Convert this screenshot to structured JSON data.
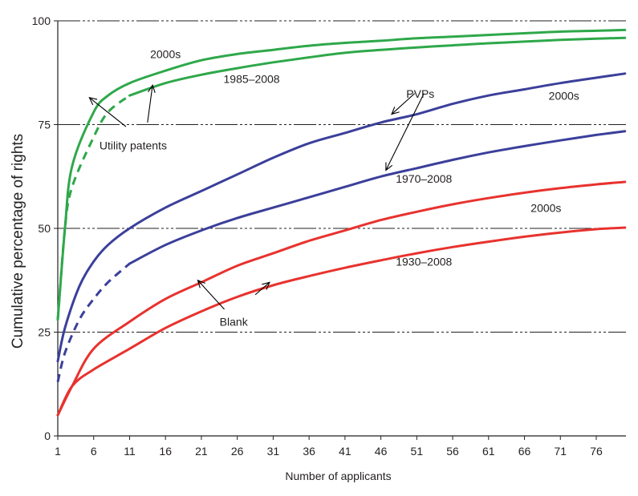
{
  "chart_data": {
    "type": "line",
    "title": "",
    "xlabel": "Number of applicants",
    "ylabel": "Cumulative percentage of rights",
    "xlim": [
      1,
      80
    ],
    "ylim": [
      0,
      100
    ],
    "x_ticks": [
      1,
      6,
      11,
      16,
      21,
      26,
      31,
      36,
      41,
      46,
      51,
      56,
      61,
      66,
      71,
      76
    ],
    "y_ticks": [
      0,
      25,
      50,
      75,
      100
    ],
    "grid": "horizontal dash-dot lines at 25, 50, 75, 100",
    "series": [
      {
        "name": "Utility patents 2000s",
        "group": "Utility patents",
        "period": "2000s",
        "color": "#2ea84a",
        "dashed_start_until_x": null,
        "x": [
          1,
          2,
          3,
          6,
          8,
          11,
          16,
          21,
          26,
          31,
          36,
          41,
          46,
          51,
          56,
          61,
          66,
          71,
          76,
          80
        ],
        "y": [
          28,
          50,
          65,
          78,
          82,
          85,
          88,
          90.5,
          92,
          93,
          94,
          94.7,
          95.2,
          95.8,
          96.2,
          96.6,
          97,
          97.4,
          97.6,
          97.8
        ]
      },
      {
        "name": "Utility patents 1985–2008",
        "group": "Utility patents",
        "period": "1985–2008",
        "color": "#2ea84a",
        "dashed_start_until_x": 9,
        "x": [
          1,
          2,
          3,
          6,
          8,
          11,
          16,
          21,
          26,
          31,
          36,
          41,
          46,
          51,
          56,
          61,
          66,
          71,
          76,
          80
        ],
        "y": [
          28,
          50,
          60,
          72,
          78,
          82,
          85,
          87,
          88.6,
          90,
          91.2,
          92.3,
          93,
          93.6,
          94.1,
          94.6,
          95,
          95.4,
          95.7,
          95.9
        ]
      },
      {
        "name": "PVPs 2000s",
        "group": "PVPs",
        "period": "2000s",
        "color": "#3b3f9a",
        "dashed_start_until_x": null,
        "x": [
          1,
          2,
          4,
          6,
          8,
          11,
          16,
          21,
          26,
          31,
          36,
          41,
          46,
          51,
          56,
          61,
          66,
          71,
          76,
          80
        ],
        "y": [
          18,
          26,
          36,
          42,
          46,
          50,
          55,
          59,
          63,
          67,
          70.5,
          73,
          75.5,
          77.5,
          80,
          82,
          83.5,
          85,
          86.3,
          87.3
        ]
      },
      {
        "name": "PVPs 1970–2008",
        "group": "PVPs",
        "period": "1970–2008",
        "color": "#3b3f9a",
        "dashed_start_until_x": 11,
        "x": [
          1,
          2,
          4,
          6,
          8,
          11,
          16,
          21,
          26,
          31,
          36,
          41,
          46,
          51,
          56,
          61,
          66,
          71,
          76,
          80
        ],
        "y": [
          13,
          20,
          28,
          33,
          37,
          41.5,
          46,
          49.5,
          52.5,
          55,
          57.5,
          60,
          62.5,
          64.5,
          66.5,
          68.3,
          69.8,
          71.2,
          72.5,
          73.4
        ]
      },
      {
        "name": "Blank 2000s",
        "group": "Blank",
        "period": "2000s",
        "color": "#e8322e",
        "dashed_start_until_x": null,
        "x": [
          1,
          3,
          6,
          11,
          16,
          21,
          26,
          31,
          36,
          41,
          46,
          51,
          56,
          61,
          66,
          71,
          76,
          80
        ],
        "y": [
          5,
          12,
          21,
          27.5,
          33,
          37,
          41,
          44,
          47,
          49.5,
          52,
          54,
          55.8,
          57.3,
          58.6,
          59.7,
          60.6,
          61.2
        ]
      },
      {
        "name": "Blank 1930–2008",
        "group": "Blank",
        "period": "1930–2008",
        "color": "#e8322e",
        "dashed_start_until_x": null,
        "x": [
          1,
          3,
          6,
          11,
          16,
          21,
          26,
          31,
          36,
          41,
          46,
          51,
          56,
          61,
          66,
          71,
          76,
          80
        ],
        "y": [
          5,
          12,
          16,
          21,
          26,
          30,
          33.5,
          36.3,
          38.5,
          40.5,
          42.3,
          44,
          45.5,
          46.8,
          48,
          49,
          49.8,
          50.2
        ]
      }
    ],
    "annotations": [
      {
        "id": "util-2000s",
        "text": "2000s",
        "x": 16,
        "y": 91
      },
      {
        "id": "util-1985",
        "text": "1985–2008",
        "x": 28,
        "y": 85
      },
      {
        "id": "util-group",
        "text": "Utility patents",
        "x": 11.5,
        "y": 69
      },
      {
        "id": "pvp-group",
        "text": "PVPs",
        "x": 51.5,
        "y": 81.5
      },
      {
        "id": "pvp-2000s",
        "text": "2000s",
        "x": 71.5,
        "y": 81
      },
      {
        "id": "pvp-1970",
        "text": "1970–2008",
        "x": 52,
        "y": 61
      },
      {
        "id": "blank-2000s",
        "text": "2000s",
        "x": 69,
        "y": 54
      },
      {
        "id": "blank-1930",
        "text": "1930–2008",
        "x": 52,
        "y": 41
      },
      {
        "id": "blank-group",
        "text": "Blank",
        "x": 25.5,
        "y": 26.5
      }
    ],
    "arrows": [
      {
        "group": "Utility patents",
        "from": [
          10.5,
          74.5
        ],
        "to": [
          5.4,
          81.5
        ]
      },
      {
        "group": "Utility patents",
        "from": [
          13.5,
          75.5
        ],
        "to": [
          14.2,
          84.5
        ]
      },
      {
        "group": "PVPs",
        "from": [
          50.7,
          82.5
        ],
        "to": [
          47.5,
          77.5
        ]
      },
      {
        "group": "PVPs",
        "from": [
          52,
          82.5
        ],
        "to": [
          46.7,
          64
        ]
      },
      {
        "group": "Blank",
        "from": [
          24.2,
          30.5
        ],
        "to": [
          20.5,
          37.5
        ]
      },
      {
        "group": "Blank",
        "from": [
          28.5,
          34
        ],
        "to": [
          30.5,
          37
        ]
      }
    ]
  }
}
